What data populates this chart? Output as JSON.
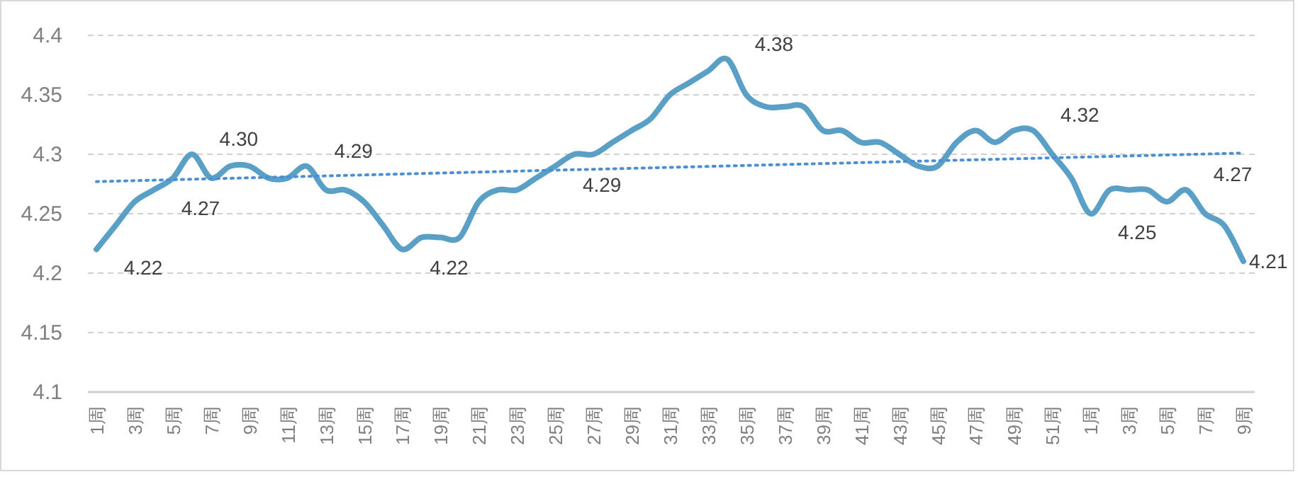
{
  "chart_data": {
    "type": "line",
    "categories": [
      "1周",
      null,
      "3周",
      null,
      "5周",
      null,
      "7周",
      null,
      "9周",
      null,
      "11周",
      null,
      "13周",
      null,
      "15周",
      null,
      "17周",
      null,
      "19周",
      null,
      "21周",
      null,
      "23周",
      null,
      "25周",
      null,
      "27周",
      null,
      "29周",
      null,
      "31周",
      null,
      "33周",
      null,
      "35周",
      null,
      "37周",
      null,
      "39周",
      null,
      "41周",
      null,
      "43周",
      null,
      "45周",
      null,
      "47周",
      null,
      "49周",
      null,
      "51周",
      null,
      "1周",
      null,
      "3周",
      null,
      "5周",
      null,
      "7周",
      null,
      "9周"
    ],
    "series": [
      {
        "color": "#5a9fc6",
        "line_style": "solid",
        "values": [
          4.22,
          4.24,
          4.26,
          4.27,
          4.28,
          4.3,
          4.28,
          4.29,
          4.29,
          4.28,
          4.28,
          4.29,
          4.27,
          4.27,
          4.26,
          4.24,
          4.22,
          4.23,
          4.23,
          4.23,
          4.26,
          4.27,
          4.27,
          4.28,
          4.29,
          4.3,
          4.3,
          4.31,
          4.32,
          4.33,
          4.35,
          4.36,
          4.37,
          4.38,
          4.35,
          4.34,
          4.34,
          4.34,
          4.32,
          4.32,
          4.31,
          4.31,
          4.3,
          4.29,
          4.29,
          4.31,
          4.32,
          4.31,
          4.32,
          4.32,
          4.3,
          4.28,
          4.25,
          4.27,
          4.27,
          4.27,
          4.26,
          4.27,
          4.25,
          4.24,
          4.21
        ],
        "value_labels": [
          "4.22",
          null,
          null,
          "4.27",
          null,
          "4.30",
          null,
          null,
          null,
          null,
          null,
          "4.29",
          null,
          null,
          null,
          null,
          "4.22",
          null,
          null,
          null,
          null,
          null,
          null,
          null,
          "4.29",
          null,
          null,
          null,
          null,
          null,
          null,
          null,
          null,
          "4.38",
          null,
          null,
          null,
          null,
          null,
          null,
          null,
          null,
          null,
          null,
          null,
          null,
          null,
          null,
          null,
          "4.32",
          null,
          null,
          "4.25",
          null,
          null,
          null,
          null,
          "4.27",
          null,
          null,
          "4.21"
        ]
      },
      {
        "color": "#4a8fd6",
        "line_style": "dotted",
        "values": [
          4.277,
          null,
          null,
          null,
          null,
          null,
          null,
          null,
          null,
          null,
          null,
          null,
          null,
          null,
          null,
          null,
          null,
          null,
          null,
          null,
          null,
          null,
          null,
          null,
          null,
          null,
          null,
          null,
          null,
          null,
          null,
          null,
          null,
          null,
          null,
          null,
          null,
          null,
          null,
          null,
          null,
          null,
          null,
          null,
          null,
          null,
          null,
          null,
          null,
          null,
          null,
          null,
          null,
          null,
          null,
          null,
          null,
          null,
          null,
          null,
          4.301
        ]
      }
    ],
    "ylim": [
      4.1,
      4.4
    ],
    "yticks": [
      4.1,
      4.15,
      4.2,
      4.25,
      4.3,
      4.35,
      4.4
    ],
    "grid": "y",
    "marker": "none"
  }
}
